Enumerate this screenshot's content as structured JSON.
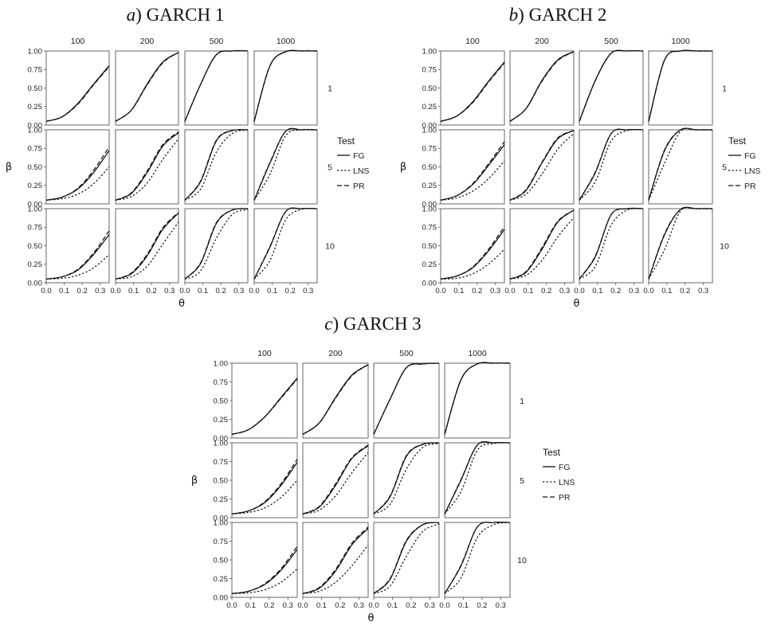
{
  "figure": {
    "col_labels": [
      "100",
      "200",
      "500",
      "1000"
    ],
    "row_labels": [
      "1",
      "5",
      "10"
    ],
    "legend_title": "Test",
    "legend_items": [
      "FG",
      "LNS",
      "PR"
    ],
    "line_styles": {
      "FG": "solid",
      "LNS": "dotted",
      "PR": "dashed"
    },
    "line_color": "#111111"
  },
  "chart_data": [
    {
      "type": "line",
      "panel_letter": "a",
      "title": "GARCH 1",
      "xlabel": "θ",
      "ylabel": "β",
      "xlim": [
        0.0,
        0.35
      ],
      "ylim": [
        0.0,
        1.0
      ],
      "xticks": [
        "0.0",
        "0.1",
        "0.2",
        "0.3"
      ],
      "yticks": [
        "0.00",
        "0.25",
        "0.50",
        "0.75",
        "1.00"
      ],
      "facets": [
        [
          {
            "FG": [
              0.05,
              0.11,
              0.29,
              0.55,
              0.8
            ],
            "LNS": [
              0.05,
              0.11,
              0.29,
              0.55,
              0.8
            ],
            "PR": [
              0.05,
              0.11,
              0.28,
              0.54,
              0.79
            ]
          },
          {
            "FG": [
              0.05,
              0.2,
              0.55,
              0.85,
              0.98
            ],
            "LNS": [
              0.05,
              0.2,
              0.55,
              0.85,
              0.98
            ],
            "PR": [
              0.05,
              0.2,
              0.54,
              0.84,
              0.98
            ]
          },
          {
            "FG": [
              0.05,
              0.55,
              0.95,
              1.0,
              1.0
            ],
            "LNS": [
              0.05,
              0.55,
              0.95,
              1.0,
              1.0
            ],
            "PR": [
              0.05,
              0.55,
              0.95,
              1.0,
              1.0
            ]
          },
          {
            "FG": [
              0.05,
              0.8,
              0.99,
              1.0,
              1.0
            ],
            "LNS": [
              0.05,
              0.8,
              0.99,
              1.0,
              1.0
            ],
            "PR": [
              0.05,
              0.8,
              0.99,
              1.0,
              1.0
            ]
          }
        ],
        [
          {
            "FG": [
              0.05,
              0.09,
              0.2,
              0.42,
              0.72
            ],
            "LNS": [
              0.05,
              0.07,
              0.13,
              0.27,
              0.5
            ],
            "PR": [
              0.05,
              0.09,
              0.21,
              0.45,
              0.77
            ]
          },
          {
            "FG": [
              0.05,
              0.14,
              0.42,
              0.78,
              0.96
            ],
            "LNS": [
              0.05,
              0.1,
              0.28,
              0.6,
              0.88
            ],
            "PR": [
              0.05,
              0.15,
              0.44,
              0.8,
              0.97
            ]
          },
          {
            "FG": [
              0.05,
              0.3,
              0.85,
              0.99,
              1.0
            ],
            "LNS": [
              0.05,
              0.2,
              0.7,
              0.95,
              1.0
            ],
            "PR": [
              0.05,
              0.31,
              0.86,
              0.99,
              1.0
            ]
          },
          {
            "FG": [
              0.05,
              0.55,
              0.98,
              1.0,
              1.0
            ],
            "LNS": [
              0.05,
              0.4,
              0.92,
              1.0,
              1.0
            ],
            "PR": [
              0.05,
              0.56,
              0.98,
              1.0,
              1.0
            ]
          }
        ],
        [
          {
            "FG": [
              0.05,
              0.08,
              0.17,
              0.38,
              0.65
            ],
            "LNS": [
              0.05,
              0.06,
              0.1,
              0.2,
              0.38
            ],
            "PR": [
              0.05,
              0.08,
              0.18,
              0.4,
              0.7
            ]
          },
          {
            "FG": [
              0.05,
              0.12,
              0.36,
              0.72,
              0.94
            ],
            "LNS": [
              0.05,
              0.08,
              0.22,
              0.52,
              0.82
            ],
            "PR": [
              0.05,
              0.13,
              0.38,
              0.74,
              0.95
            ]
          },
          {
            "FG": [
              0.05,
              0.26,
              0.8,
              0.98,
              1.0
            ],
            "LNS": [
              0.05,
              0.16,
              0.6,
              0.92,
              0.99
            ],
            "PR": [
              0.05,
              0.27,
              0.81,
              0.98,
              1.0
            ]
          },
          {
            "FG": [
              0.05,
              0.48,
              0.96,
              1.0,
              1.0
            ],
            "LNS": [
              0.05,
              0.3,
              0.85,
              0.99,
              1.0
            ],
            "PR": [
              0.05,
              0.49,
              0.96,
              1.0,
              1.0
            ]
          }
        ]
      ]
    },
    {
      "type": "line",
      "panel_letter": "b",
      "title": "GARCH 2",
      "xlabel": "θ",
      "ylabel": "β",
      "xlim": [
        0.0,
        0.35
      ],
      "ylim": [
        0.0,
        1.0
      ],
      "xticks": [
        "0.0",
        "0.1",
        "0.2",
        "0.3"
      ],
      "yticks": [
        "0.00",
        "0.25",
        "0.50",
        "0.75",
        "1.00"
      ],
      "facets": [
        [
          {
            "FG": [
              0.05,
              0.12,
              0.31,
              0.59,
              0.85
            ],
            "LNS": [
              0.05,
              0.12,
              0.31,
              0.59,
              0.85
            ],
            "PR": [
              0.05,
              0.12,
              0.3,
              0.58,
              0.84
            ]
          },
          {
            "FG": [
              0.05,
              0.22,
              0.6,
              0.88,
              0.99
            ],
            "LNS": [
              0.05,
              0.22,
              0.6,
              0.88,
              0.99
            ],
            "PR": [
              0.05,
              0.22,
              0.59,
              0.87,
              0.99
            ]
          },
          {
            "FG": [
              0.05,
              0.6,
              0.97,
              1.0,
              1.0
            ],
            "LNS": [
              0.05,
              0.6,
              0.97,
              1.0,
              1.0
            ],
            "PR": [
              0.05,
              0.6,
              0.97,
              1.0,
              1.0
            ]
          },
          {
            "FG": [
              0.05,
              0.88,
              1.0,
              1.0,
              1.0
            ],
            "LNS": [
              0.05,
              0.88,
              1.0,
              1.0,
              1.0
            ],
            "PR": [
              0.05,
              0.88,
              1.0,
              1.0,
              1.0
            ]
          }
        ],
        [
          {
            "FG": [
              0.05,
              0.11,
              0.26,
              0.52,
              0.8
            ],
            "LNS": [
              0.05,
              0.08,
              0.17,
              0.34,
              0.58
            ],
            "PR": [
              0.05,
              0.11,
              0.27,
              0.54,
              0.84
            ]
          },
          {
            "FG": [
              0.05,
              0.18,
              0.55,
              0.88,
              0.99
            ],
            "LNS": [
              0.05,
              0.13,
              0.4,
              0.74,
              0.95
            ],
            "PR": [
              0.05,
              0.19,
              0.56,
              0.89,
              0.99
            ]
          },
          {
            "FG": [
              0.05,
              0.42,
              0.95,
              1.0,
              1.0
            ],
            "LNS": [
              0.05,
              0.3,
              0.85,
              0.99,
              1.0
            ],
            "PR": [
              0.05,
              0.43,
              0.95,
              1.0,
              1.0
            ]
          },
          {
            "FG": [
              0.05,
              0.72,
              1.0,
              1.0,
              1.0
            ],
            "LNS": [
              0.05,
              0.55,
              0.98,
              1.0,
              1.0
            ],
            "PR": [
              0.05,
              0.73,
              1.0,
              1.0,
              1.0
            ]
          }
        ],
        [
          {
            "FG": [
              0.05,
              0.09,
              0.2,
              0.43,
              0.72
            ],
            "LNS": [
              0.05,
              0.06,
              0.12,
              0.25,
              0.45
            ],
            "PR": [
              0.05,
              0.09,
              0.21,
              0.45,
              0.76
            ]
          },
          {
            "FG": [
              0.05,
              0.14,
              0.45,
              0.82,
              0.98
            ],
            "LNS": [
              0.05,
              0.1,
              0.3,
              0.62,
              0.88
            ],
            "PR": [
              0.05,
              0.15,
              0.47,
              0.83,
              0.98
            ]
          },
          {
            "FG": [
              0.05,
              0.35,
              0.92,
              1.0,
              1.0
            ],
            "LNS": [
              0.05,
              0.22,
              0.78,
              0.98,
              1.0
            ],
            "PR": [
              0.05,
              0.36,
              0.92,
              1.0,
              1.0
            ]
          },
          {
            "FG": [
              0.05,
              0.65,
              0.99,
              1.0,
              1.0
            ],
            "LNS": [
              0.05,
              0.45,
              0.97,
              1.0,
              1.0
            ],
            "PR": [
              0.05,
              0.66,
              0.99,
              1.0,
              1.0
            ]
          }
        ]
      ]
    },
    {
      "type": "line",
      "panel_letter": "c",
      "title": "GARCH 3",
      "xlabel": "θ",
      "ylabel": "β",
      "xlim": [
        0.0,
        0.35
      ],
      "ylim": [
        0.0,
        1.0
      ],
      "xticks": [
        "0.0",
        "0.1",
        "0.2",
        "0.3"
      ],
      "yticks": [
        "0.00",
        "0.25",
        "0.50",
        "0.75",
        "1.00"
      ],
      "facets": [
        [
          {
            "FG": [
              0.05,
              0.11,
              0.28,
              0.54,
              0.8
            ],
            "LNS": [
              0.05,
              0.11,
              0.28,
              0.54,
              0.8
            ],
            "PR": [
              0.05,
              0.11,
              0.28,
              0.53,
              0.79
            ]
          },
          {
            "FG": [
              0.05,
              0.2,
              0.54,
              0.84,
              0.98
            ],
            "LNS": [
              0.05,
              0.2,
              0.54,
              0.84,
              0.98
            ],
            "PR": [
              0.05,
              0.2,
              0.53,
              0.83,
              0.98
            ]
          },
          {
            "FG": [
              0.05,
              0.52,
              0.94,
              0.99,
              1.0
            ],
            "LNS": [
              0.05,
              0.52,
              0.94,
              0.99,
              1.0
            ],
            "PR": [
              0.05,
              0.52,
              0.94,
              0.99,
              1.0
            ]
          },
          {
            "FG": [
              0.05,
              0.78,
              0.99,
              1.0,
              1.0
            ],
            "LNS": [
              0.05,
              0.78,
              0.99,
              1.0,
              1.0
            ],
            "PR": [
              0.05,
              0.78,
              0.99,
              1.0,
              1.0
            ]
          }
        ],
        [
          {
            "FG": [
              0.05,
              0.09,
              0.2,
              0.43,
              0.74
            ],
            "LNS": [
              0.05,
              0.07,
              0.13,
              0.27,
              0.5
            ],
            "PR": [
              0.05,
              0.09,
              0.21,
              0.45,
              0.78
            ]
          },
          {
            "FG": [
              0.05,
              0.14,
              0.43,
              0.79,
              0.96
            ],
            "LNS": [
              0.05,
              0.1,
              0.29,
              0.6,
              0.87
            ],
            "PR": [
              0.05,
              0.15,
              0.45,
              0.8,
              0.97
            ]
          },
          {
            "FG": [
              0.05,
              0.28,
              0.82,
              0.98,
              1.0
            ],
            "LNS": [
              0.05,
              0.18,
              0.65,
              0.94,
              0.99
            ],
            "PR": [
              0.05,
              0.29,
              0.83,
              0.98,
              1.0
            ]
          },
          {
            "FG": [
              0.05,
              0.5,
              0.97,
              1.0,
              1.0
            ],
            "LNS": [
              0.05,
              0.35,
              0.9,
              0.99,
              1.0
            ],
            "PR": [
              0.05,
              0.51,
              0.97,
              1.0,
              1.0
            ]
          }
        ],
        [
          {
            "FG": [
              0.05,
              0.08,
              0.17,
              0.36,
              0.64
            ],
            "LNS": [
              0.05,
              0.06,
              0.1,
              0.2,
              0.38
            ],
            "PR": [
              0.05,
              0.08,
              0.18,
              0.38,
              0.68
            ]
          },
          {
            "FG": [
              0.05,
              0.12,
              0.35,
              0.7,
              0.92
            ],
            "LNS": [
              0.05,
              0.08,
              0.2,
              0.42,
              0.7
            ],
            "PR": [
              0.05,
              0.13,
              0.37,
              0.72,
              0.94
            ]
          },
          {
            "FG": [
              0.05,
              0.24,
              0.75,
              0.97,
              1.0
            ],
            "LNS": [
              0.05,
              0.15,
              0.55,
              0.88,
              0.98
            ],
            "PR": [
              0.05,
              0.25,
              0.76,
              0.97,
              1.0
            ]
          },
          {
            "FG": [
              0.05,
              0.42,
              0.94,
              1.0,
              1.0
            ],
            "LNS": [
              0.05,
              0.26,
              0.8,
              0.97,
              1.0
            ],
            "PR": [
              0.05,
              0.43,
              0.94,
              1.0,
              1.0
            ]
          }
        ]
      ]
    }
  ]
}
